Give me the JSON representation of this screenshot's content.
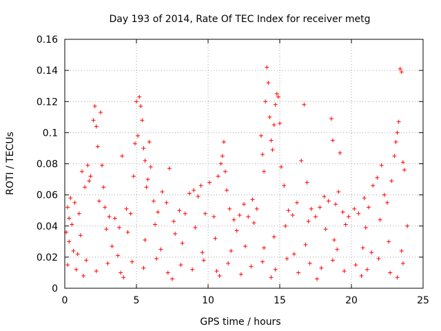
{
  "chart_data": {
    "type": "scatter",
    "title": "Day 193 of 2014, Rate Of TEC Index for receiver metg",
    "xlabel": "GPS time / hours",
    "ylabel": "ROTI / TECUs",
    "xlim": [
      0,
      25
    ],
    "ylim": [
      0,
      0.16
    ],
    "xticks": [
      0,
      5,
      10,
      15,
      20,
      25
    ],
    "xtick_labels": [
      "0",
      "5",
      "10",
      "15",
      "20",
      "25"
    ],
    "yticks": [
      0,
      0.02,
      0.04,
      0.06,
      0.08,
      0.1,
      0.12,
      0.14,
      0.16
    ],
    "ytick_labels": [
      "0",
      "0.02",
      "0.04",
      "0.06",
      "0.08",
      "0.1",
      "0.12",
      "0.14",
      "0.16"
    ],
    "grid": true,
    "marker": "+",
    "color": "#ff0000",
    "series": [
      {
        "name": "ROTI",
        "points": [
          [
            0.1,
            0.036
          ],
          [
            0.2,
            0.052
          ],
          [
            0.3,
            0.045
          ],
          [
            0.4,
            0.058
          ],
          [
            0.5,
            0.041
          ],
          [
            0.7,
            0.055
          ],
          [
            1.0,
            0.048
          ],
          [
            1.2,
            0.075
          ],
          [
            1.4,
            0.065
          ],
          [
            1.6,
            0.079
          ],
          [
            1.7,
            0.069
          ],
          [
            1.8,
            0.072
          ],
          [
            2.0,
            0.108
          ],
          [
            2.1,
            0.117
          ],
          [
            2.2,
            0.104
          ],
          [
            2.3,
            0.091
          ],
          [
            2.4,
            0.056
          ],
          [
            2.5,
            0.113
          ],
          [
            2.6,
            0.079
          ],
          [
            2.7,
            0.065
          ],
          [
            2.8,
            0.052
          ],
          [
            3.1,
            0.046
          ],
          [
            3.5,
            0.045
          ],
          [
            3.8,
            0.039
          ],
          [
            4.0,
            0.085
          ],
          [
            4.3,
            0.051
          ],
          [
            4.6,
            0.048
          ],
          [
            4.8,
            0.072
          ],
          [
            4.9,
            0.093
          ],
          [
            5.0,
            0.12
          ],
          [
            5.1,
            0.098
          ],
          [
            5.2,
            0.123
          ],
          [
            5.3,
            0.117
          ],
          [
            5.4,
            0.108
          ],
          [
            5.5,
            0.09
          ],
          [
            5.6,
            0.082
          ],
          [
            5.7,
            0.065
          ],
          [
            5.8,
            0.07
          ],
          [
            5.9,
            0.094
          ],
          [
            6.0,
            0.078
          ],
          [
            6.2,
            0.056
          ],
          [
            6.5,
            0.049
          ],
          [
            6.8,
            0.062
          ],
          [
            7.1,
            0.055
          ],
          [
            7.3,
            0.077
          ],
          [
            7.6,
            0.043
          ],
          [
            8.0,
            0.05
          ],
          [
            8.4,
            0.048
          ],
          [
            8.7,
            0.061
          ],
          [
            9.0,
            0.063
          ],
          [
            9.3,
            0.059
          ],
          [
            9.5,
            0.066
          ],
          [
            9.8,
            0.048
          ],
          [
            10.1,
            0.068
          ],
          [
            10.4,
            0.046
          ],
          [
            10.7,
            0.072
          ],
          [
            10.9,
            0.08
          ],
          [
            11.0,
            0.085
          ],
          [
            11.1,
            0.094
          ],
          [
            11.2,
            0.075
          ],
          [
            11.3,
            0.063
          ],
          [
            11.5,
            0.051
          ],
          [
            11.8,
            0.044
          ],
          [
            12.2,
            0.047
          ],
          [
            12.5,
            0.054
          ],
          [
            12.8,
            0.046
          ],
          [
            13.1,
            0.057
          ],
          [
            13.4,
            0.051
          ],
          [
            13.7,
            0.098
          ],
          [
            13.8,
            0.086
          ],
          [
            13.9,
            0.075
          ],
          [
            14.0,
            0.12
          ],
          [
            14.1,
            0.142
          ],
          [
            14.2,
            0.132
          ],
          [
            14.3,
            0.11
          ],
          [
            14.4,
            0.095
          ],
          [
            14.5,
            0.089
          ],
          [
            14.6,
            0.105
          ],
          [
            14.7,
            0.118
          ],
          [
            14.8,
            0.125
          ],
          [
            14.9,
            0.123
          ],
          [
            15.0,
            0.106
          ],
          [
            15.1,
            0.078
          ],
          [
            15.3,
            0.066
          ],
          [
            15.6,
            0.05
          ],
          [
            15.9,
            0.047
          ],
          [
            16.2,
            0.055
          ],
          [
            16.5,
            0.082
          ],
          [
            16.7,
            0.118
          ],
          [
            16.9,
            0.068
          ],
          [
            17.2,
            0.051
          ],
          [
            17.5,
            0.046
          ],
          [
            17.8,
            0.052
          ],
          [
            18.1,
            0.059
          ],
          [
            18.4,
            0.056
          ],
          [
            18.6,
            0.109
          ],
          [
            18.7,
            0.095
          ],
          [
            18.9,
            0.054
          ],
          [
            19.1,
            0.062
          ],
          [
            19.2,
            0.087
          ],
          [
            19.4,
            0.049
          ],
          [
            19.8,
            0.046
          ],
          [
            20.2,
            0.051
          ],
          [
            20.5,
            0.048
          ],
          [
            20.9,
            0.058
          ],
          [
            21.2,
            0.052
          ],
          [
            21.5,
            0.066
          ],
          [
            21.8,
            0.071
          ],
          [
            22.1,
            0.079
          ],
          [
            22.3,
            0.06
          ],
          [
            22.5,
            0.055
          ],
          [
            22.8,
            0.069
          ],
          [
            23.0,
            0.085
          ],
          [
            23.1,
            0.094
          ],
          [
            23.2,
            0.1
          ],
          [
            23.3,
            0.107
          ],
          [
            23.4,
            0.141
          ],
          [
            23.5,
            0.139
          ],
          [
            23.6,
            0.081
          ],
          [
            23.7,
            0.076
          ],
          [
            0.3,
            0.03
          ],
          [
            1.1,
            0.034
          ],
          [
            2.9,
            0.038
          ],
          [
            4.4,
            0.036
          ],
          [
            6.3,
            0.041
          ],
          [
            7.7,
            0.035
          ],
          [
            9.1,
            0.039
          ],
          [
            12.0,
            0.037
          ],
          [
            13.2,
            0.042
          ],
          [
            15.4,
            0.04
          ],
          [
            17.0,
            0.043
          ],
          [
            18.2,
            0.038
          ],
          [
            19.6,
            0.041
          ],
          [
            21.0,
            0.039
          ],
          [
            22.0,
            0.044
          ],
          [
            23.9,
            0.04
          ],
          [
            0.6,
            0.024
          ],
          [
            3.3,
            0.027
          ],
          [
            5.6,
            0.031
          ],
          [
            8.2,
            0.029
          ],
          [
            10.5,
            0.032
          ],
          [
            12.6,
            0.027
          ],
          [
            14.6,
            0.033
          ],
          [
            16.8,
            0.028
          ],
          [
            18.8,
            0.031
          ],
          [
            20.8,
            0.026
          ],
          [
            22.6,
            0.03
          ],
          [
            0.9,
            0.022
          ],
          [
            3.7,
            0.021
          ],
          [
            6.7,
            0.025
          ],
          [
            9.6,
            0.023
          ],
          [
            11.6,
            0.024
          ],
          [
            13.9,
            0.026
          ],
          [
            16.0,
            0.022
          ],
          [
            19.0,
            0.025
          ],
          [
            21.4,
            0.023
          ],
          [
            23.5,
            0.024
          ],
          [
            0.2,
            0.015
          ],
          [
            0.8,
            0.012
          ],
          [
            1.5,
            0.018
          ],
          [
            2.2,
            0.011
          ],
          [
            3.0,
            0.016
          ],
          [
            3.9,
            0.01
          ],
          [
            4.7,
            0.017
          ],
          [
            5.5,
            0.013
          ],
          [
            6.4,
            0.019
          ],
          [
            7.2,
            0.01
          ],
          [
            8.1,
            0.015
          ],
          [
            8.9,
            0.012
          ],
          [
            9.7,
            0.018
          ],
          [
            10.6,
            0.011
          ],
          [
            11.4,
            0.016
          ],
          [
            12.3,
            0.009
          ],
          [
            13.0,
            0.014
          ],
          [
            13.8,
            0.017
          ],
          [
            14.7,
            0.012
          ],
          [
            15.5,
            0.019
          ],
          [
            16.3,
            0.01
          ],
          [
            17.1,
            0.016
          ],
          [
            17.9,
            0.013
          ],
          [
            18.7,
            0.018
          ],
          [
            19.5,
            0.011
          ],
          [
            20.3,
            0.015
          ],
          [
            21.1,
            0.012
          ],
          [
            21.9,
            0.019
          ],
          [
            22.7,
            0.01
          ],
          [
            23.6,
            0.016
          ],
          [
            1.3,
            0.008
          ],
          [
            4.1,
            0.007
          ],
          [
            7.5,
            0.006
          ],
          [
            10.8,
            0.008
          ],
          [
            14.4,
            0.007
          ],
          [
            17.6,
            0.006
          ],
          [
            20.7,
            0.008
          ],
          [
            23.2,
            0.007
          ]
        ]
      }
    ]
  }
}
